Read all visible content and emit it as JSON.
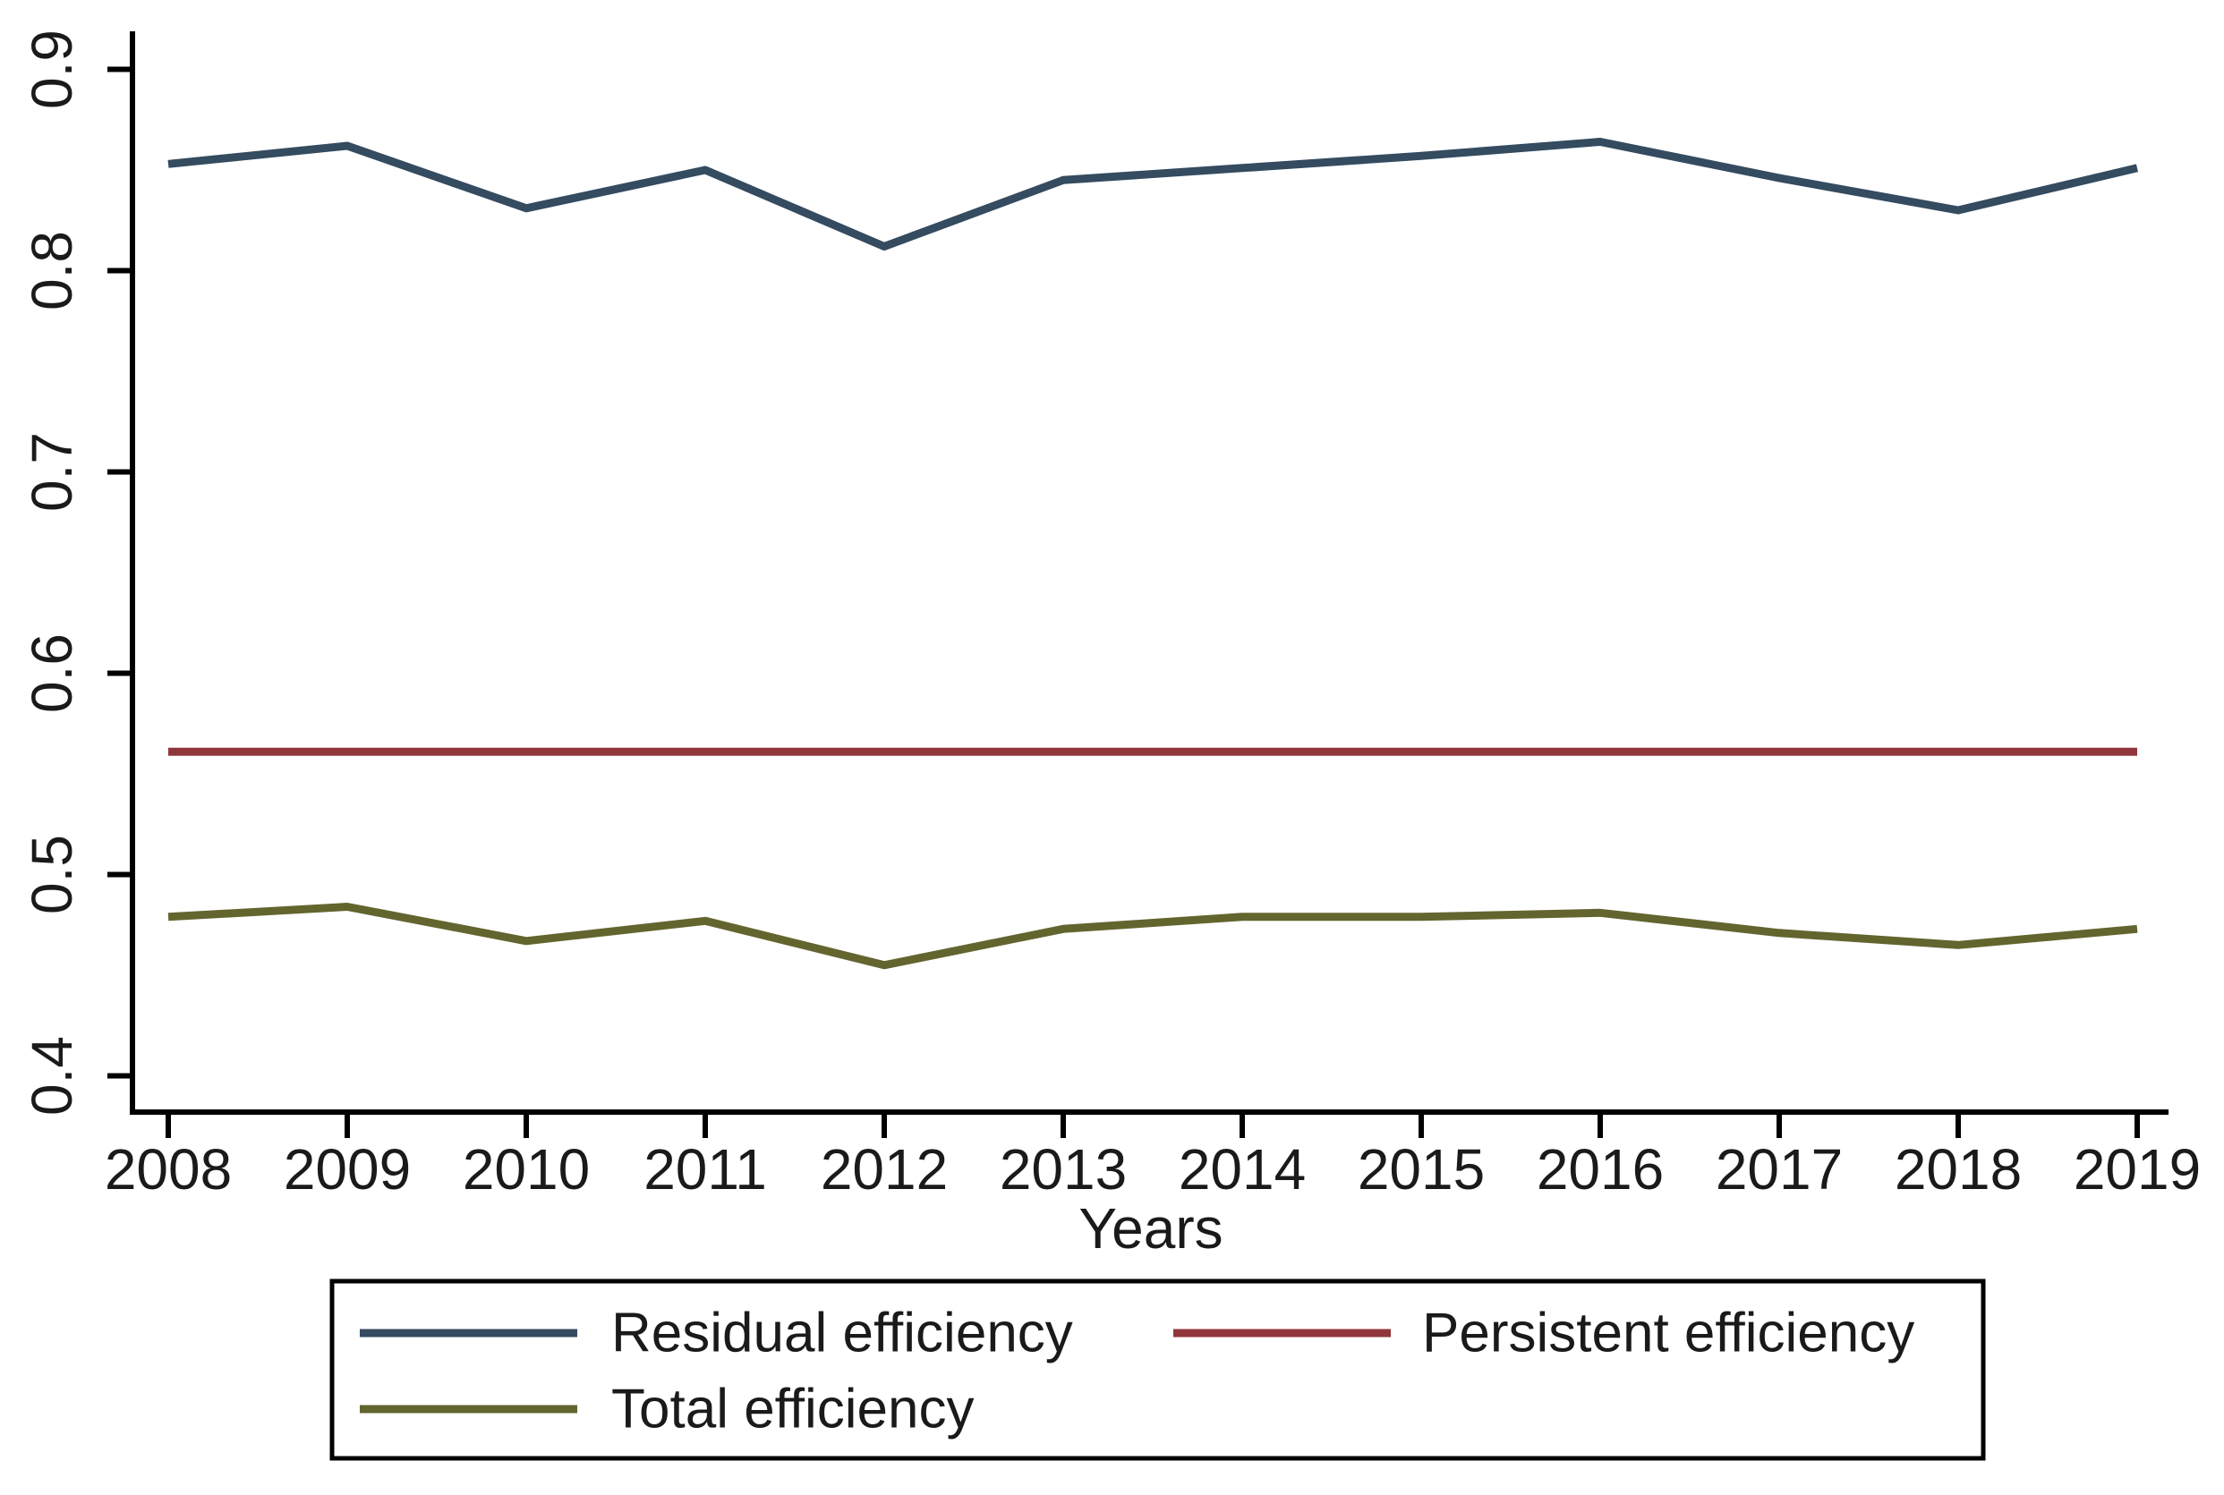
{
  "figure": {
    "background": "#ffffff",
    "axis_color": "#000000",
    "text_color": "#1a1a1a"
  },
  "chart_data": {
    "type": "line",
    "title": "",
    "xlabel": "Years",
    "ylabel": "",
    "categories": [
      "2008",
      "2009",
      "2010",
      "2011",
      "2012",
      "2013",
      "2014",
      "2015",
      "2016",
      "2017",
      "2018",
      "2019"
    ],
    "series": [
      {
        "name": "Residual efficiency",
        "color": "#344b60",
        "values": [
          0.853,
          0.862,
          0.831,
          0.85,
          0.812,
          0.845,
          0.851,
          0.857,
          0.864,
          0.846,
          0.83,
          0.851
        ]
      },
      {
        "name": "Persistent efficiency",
        "color": "#90353b",
        "values": [
          0.561,
          0.561,
          0.561,
          0.561,
          0.561,
          0.561,
          0.561,
          0.561,
          0.561,
          0.561,
          0.561,
          0.561
        ]
      },
      {
        "name": "Total efficiency",
        "color": "#63652f",
        "values": [
          0.479,
          0.484,
          0.467,
          0.477,
          0.455,
          0.473,
          0.479,
          0.479,
          0.481,
          0.471,
          0.465,
          0.473
        ]
      }
    ],
    "ylim": [
      0.4,
      0.9
    ],
    "y_ticks": [
      "0.4",
      "0.5",
      "0.6",
      "0.7",
      "0.8",
      "0.9"
    ],
    "x_ticks": [
      "2008",
      "2009",
      "2010",
      "2011",
      "2012",
      "2013",
      "2014",
      "2015",
      "2016",
      "2017",
      "2018",
      "2019"
    ],
    "grid": false,
    "legend_position": "bottom-box"
  },
  "legend": {
    "items": [
      {
        "label": "Residual efficiency",
        "series_index": 0
      },
      {
        "label": "Persistent efficiency",
        "series_index": 1
      },
      {
        "label": "Total efficiency",
        "series_index": 2
      }
    ]
  }
}
